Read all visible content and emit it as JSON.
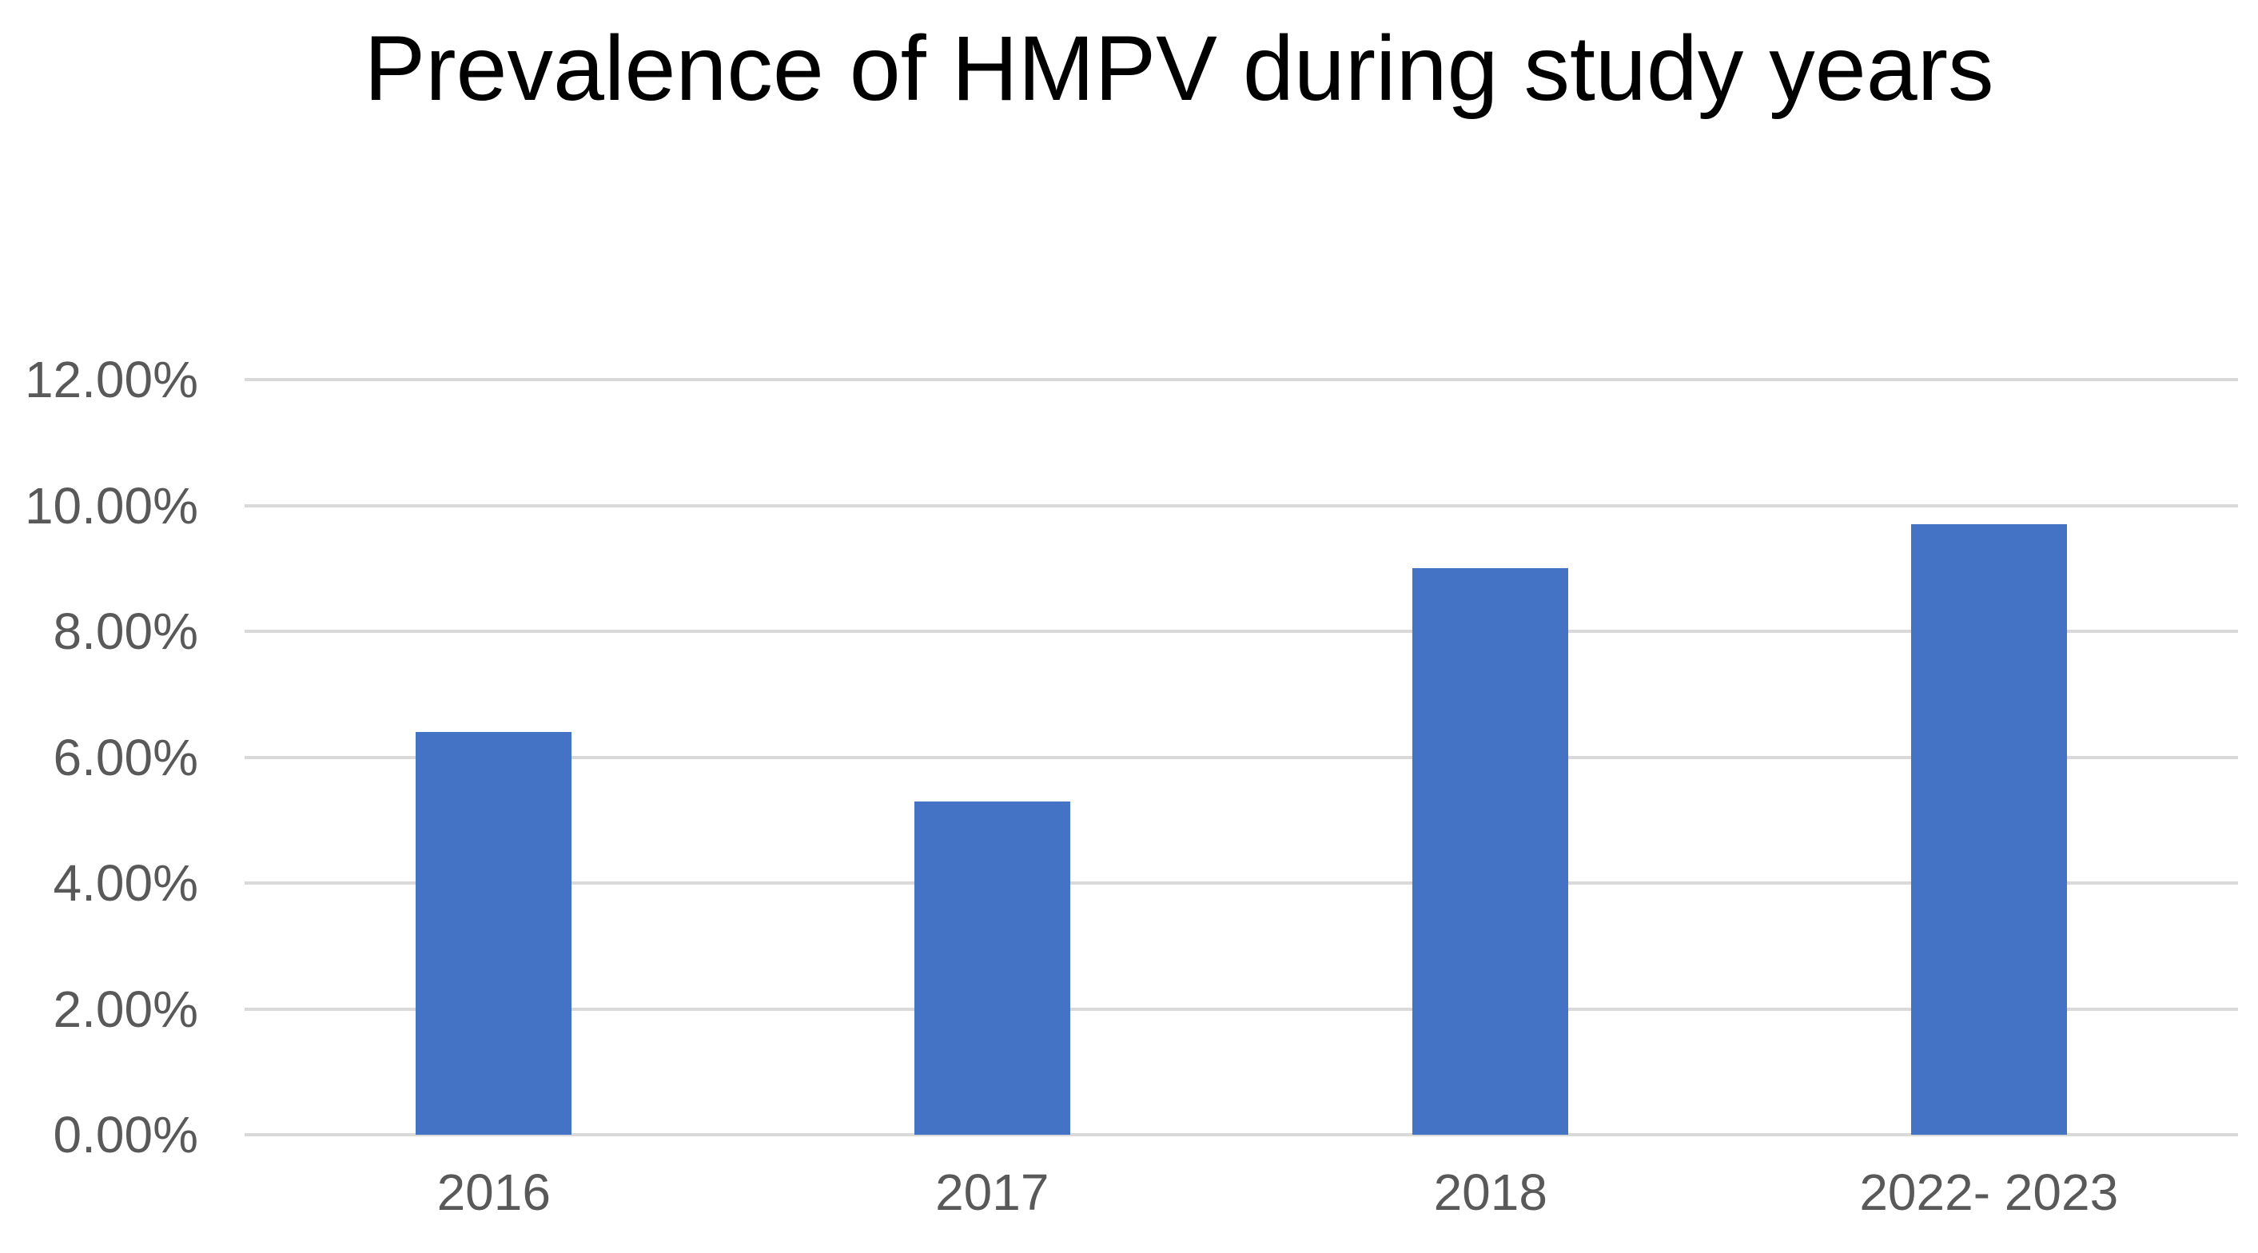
{
  "chart_data": {
    "type": "bar",
    "title": "Prevalence of HMPV during study years",
    "categories": [
      "2016",
      "2017",
      "2018",
      "2022- 2023"
    ],
    "values": [
      6.4,
      5.3,
      9.0,
      9.7
    ],
    "value_unit": "%",
    "xlabel": "",
    "ylabel": "",
    "ylim": [
      0,
      12
    ],
    "y_tick_interval": 2,
    "y_tick_labels_bottom_to_top": [
      "0.00%",
      "2.00%",
      "4.00%",
      "6.00%",
      "8.00%",
      "10.00%",
      "12.00%"
    ],
    "grid": "horizontal-only",
    "legend": "none",
    "colors": {
      "bar": "#4472C4",
      "gridline": "#D9D9D9",
      "tick_label": "#595959",
      "title": "#000000",
      "background": "#FFFFFF"
    }
  }
}
